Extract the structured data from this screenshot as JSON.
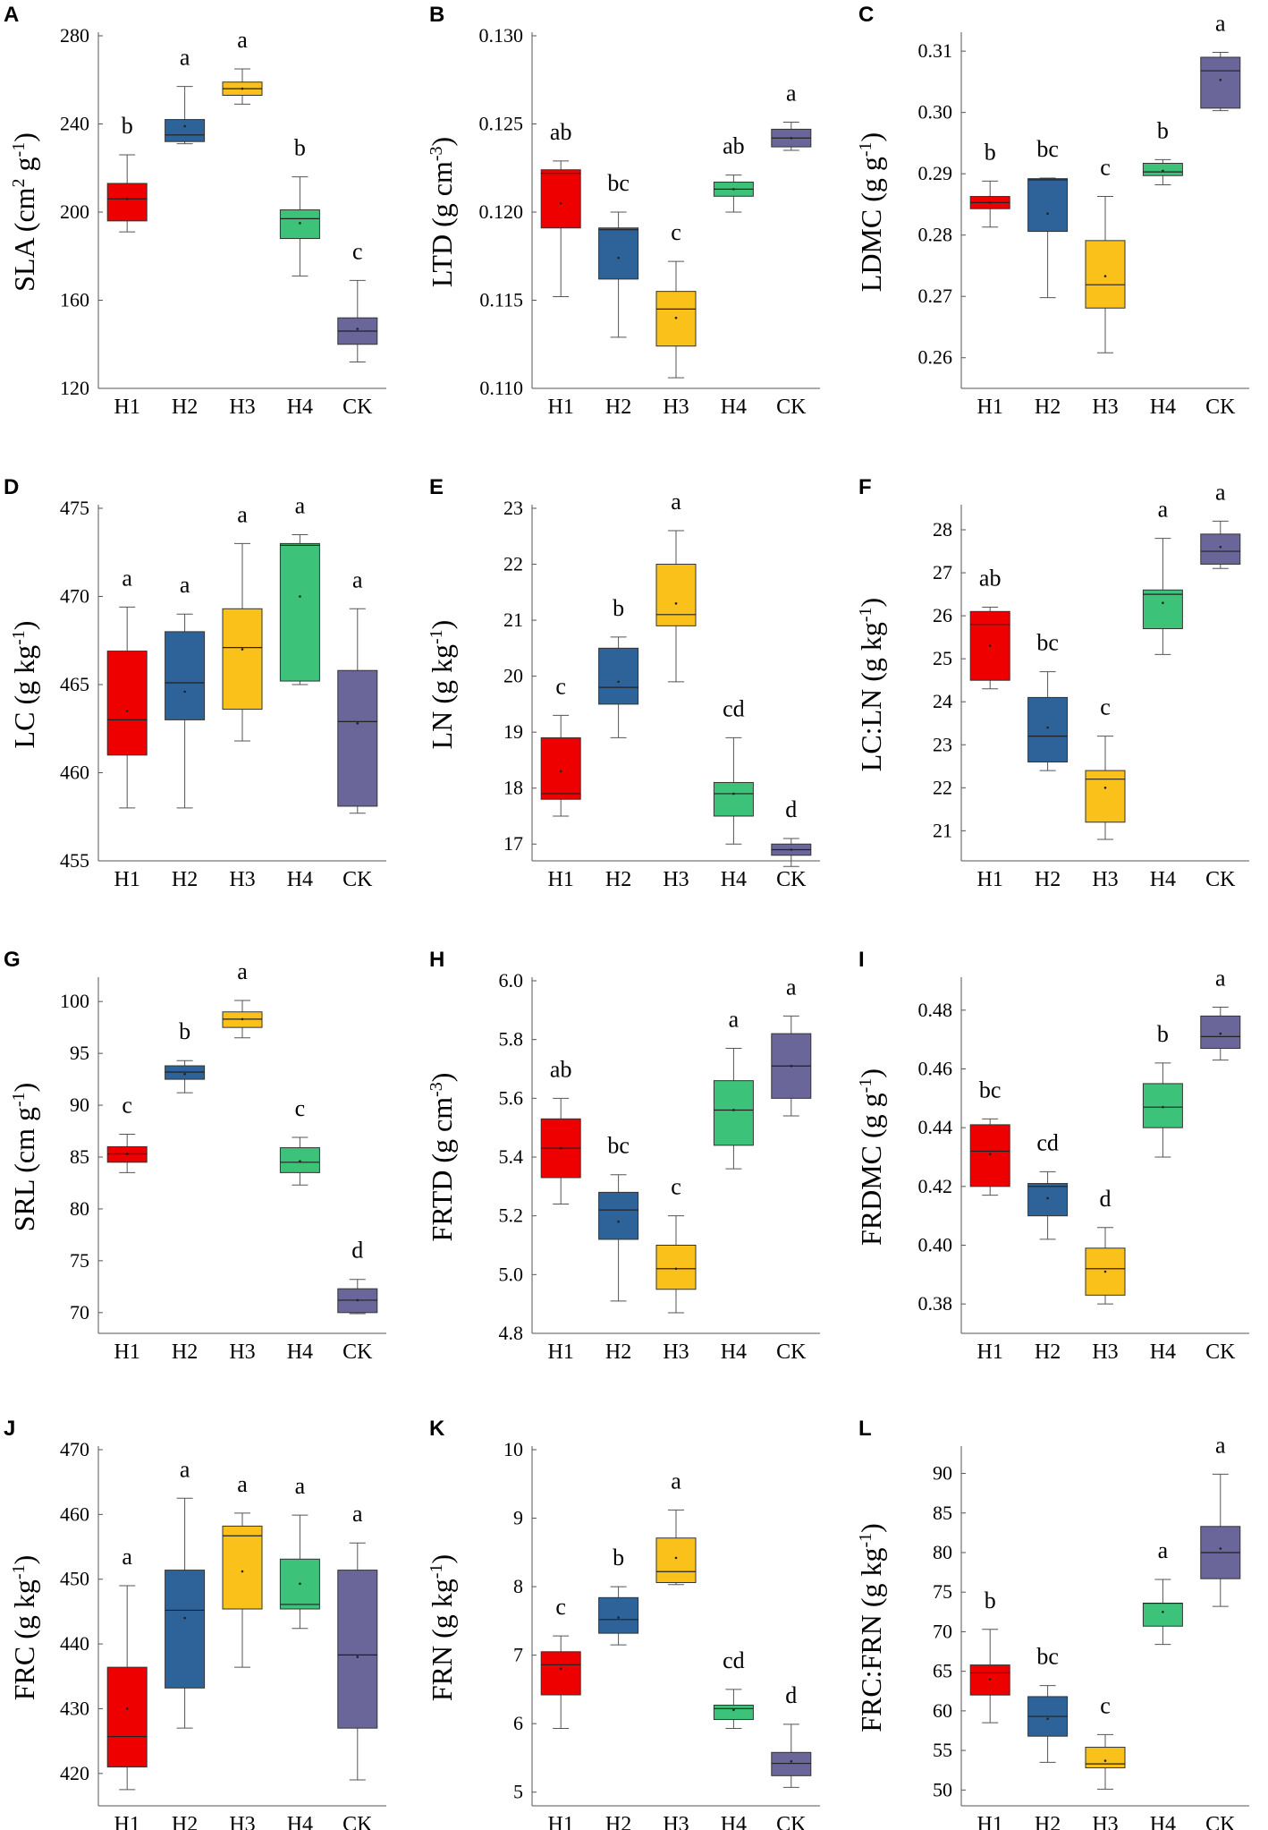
{
  "colors": {
    "H1": "#ee0000",
    "H2": "#2e6399",
    "H3": "#fbc11b",
    "H4": "#3dc279",
    "CK": "#6a6699"
  },
  "chart_data": [
    {
      "type": "box",
      "letter": "A",
      "ylabel": "SLA",
      "ylabel_unit": "(cm",
      "ylabel_sup": "2",
      "ylabel_mid": " g",
      "ylabel_sup2": "-1",
      "ylabel_end": ")",
      "ylim": [
        120,
        280
      ],
      "yticks": [
        120,
        160,
        200,
        240,
        280
      ],
      "tick_labels": [
        "120",
        "160",
        "200",
        "240",
        "280"
      ],
      "categories": [
        "H1",
        "H2",
        "H3",
        "H4",
        "CK"
      ],
      "boxes": [
        {
          "min": 191,
          "q1": 196,
          "median": 206,
          "q3": 213,
          "max": 226,
          "mean": 206
        },
        {
          "min": 231,
          "q1": 232,
          "median": 235,
          "q3": 242,
          "max": 257,
          "mean": 239
        },
        {
          "min": 249,
          "q1": 253,
          "median": 256,
          "q3": 259,
          "max": 265,
          "mean": 256
        },
        {
          "min": 171,
          "q1": 188,
          "median": 197,
          "q3": 201,
          "max": 216,
          "mean": 195
        },
        {
          "min": 132,
          "q1": 140,
          "median": 146,
          "q3": 152,
          "max": 169,
          "mean": 147
        }
      ],
      "letters": [
        "b",
        "a",
        "a",
        "b",
        "c"
      ]
    },
    {
      "type": "box",
      "letter": "B",
      "ylabel": "LTD",
      "ylabel_unit": "(g cm",
      "ylabel_sup": "-3",
      "ylabel_mid": "",
      "ylabel_sup2": "",
      "ylabel_end": ")",
      "ylim": [
        0.11,
        0.13
      ],
      "yticks": [
        0.11,
        0.115,
        0.12,
        0.125,
        0.13
      ],
      "tick_labels": [
        "0.110",
        "0.115",
        "0.120",
        "0.125",
        "0.130"
      ],
      "categories": [
        "H1",
        "H2",
        "H3",
        "H4",
        "CK"
      ],
      "boxes": [
        {
          "min": 0.1152,
          "q1": 0.1191,
          "median": 0.1222,
          "q3": 0.1224,
          "max": 0.1229,
          "mean": 0.1205
        },
        {
          "min": 0.1129,
          "q1": 0.1162,
          "median": 0.119,
          "q3": 0.1191,
          "max": 0.12,
          "mean": 0.1174
        },
        {
          "min": 0.1106,
          "q1": 0.1124,
          "median": 0.1145,
          "q3": 0.1155,
          "max": 0.1172,
          "mean": 0.114
        },
        {
          "min": 0.12,
          "q1": 0.1209,
          "median": 0.1213,
          "q3": 0.1217,
          "max": 0.1221,
          "mean": 0.1213
        },
        {
          "min": 0.1235,
          "q1": 0.1237,
          "median": 0.1242,
          "q3": 0.1247,
          "max": 0.1251,
          "mean": 0.1242
        }
      ],
      "letters": [
        "ab",
        "bc",
        "c",
        "ab",
        "a"
      ]
    },
    {
      "type": "box",
      "letter": "C",
      "ylabel": "LDMC",
      "ylabel_unit": "(g g",
      "ylabel_sup": "-1",
      "ylabel_mid": "",
      "ylabel_sup2": "",
      "ylabel_end": ")",
      "ylim": [
        0.255,
        0.3125
      ],
      "yticks": [
        0.26,
        0.27,
        0.28,
        0.29,
        0.3,
        0.31
      ],
      "tick_labels": [
        "0.26",
        "0.27",
        "0.28",
        "0.29",
        "0.30",
        "0.31"
      ],
      "categories": [
        "H1",
        "H2",
        "H3",
        "H4",
        "CK"
      ],
      "boxes": [
        {
          "min": 0.2813,
          "q1": 0.2843,
          "median": 0.2853,
          "q3": 0.2863,
          "max": 0.2888,
          "mean": 0.2853
        },
        {
          "min": 0.2698,
          "q1": 0.2806,
          "median": 0.289,
          "q3": 0.2892,
          "max": 0.2893,
          "mean": 0.2835
        },
        {
          "min": 0.2608,
          "q1": 0.2681,
          "median": 0.2719,
          "q3": 0.2791,
          "max": 0.2863,
          "mean": 0.2733
        },
        {
          "min": 0.2882,
          "q1": 0.2897,
          "median": 0.2903,
          "q3": 0.2917,
          "max": 0.2923,
          "mean": 0.2905
        },
        {
          "min": 0.3003,
          "q1": 0.3007,
          "median": 0.3068,
          "q3": 0.309,
          "max": 0.3098,
          "mean": 0.3053
        }
      ],
      "letters": [
        "b",
        "bc",
        "c",
        "b",
        "a"
      ]
    },
    {
      "type": "box",
      "letter": "D",
      "ylabel": "LC",
      "ylabel_unit": "(g kg",
      "ylabel_sup": "-1",
      "ylabel_mid": "",
      "ylabel_sup2": "",
      "ylabel_end": ")",
      "ylim": [
        455,
        475
      ],
      "yticks": [
        455,
        460,
        465,
        470,
        475
      ],
      "tick_labels": [
        "455",
        "460",
        "465",
        "470",
        "475"
      ],
      "categories": [
        "H1",
        "H2",
        "H3",
        "H4",
        "CK"
      ],
      "boxes": [
        {
          "min": 458.0,
          "q1": 461.0,
          "median": 463.0,
          "q3": 466.9,
          "max": 469.4,
          "mean": 463.5
        },
        {
          "min": 458.0,
          "q1": 463.0,
          "median": 465.1,
          "q3": 468.0,
          "max": 469.0,
          "mean": 464.6
        },
        {
          "min": 461.8,
          "q1": 463.6,
          "median": 467.1,
          "q3": 469.3,
          "max": 473.0,
          "mean": 467.0
        },
        {
          "min": 465.0,
          "q1": 465.2,
          "median": 472.9,
          "q3": 473.0,
          "max": 473.5,
          "mean": 470.0
        },
        {
          "min": 457.7,
          "q1": 458.1,
          "median": 462.9,
          "q3": 465.8,
          "max": 469.3,
          "mean": 462.8
        }
      ],
      "letters": [
        "a",
        "a",
        "a",
        "a",
        "a"
      ]
    },
    {
      "type": "box",
      "letter": "E",
      "ylabel": "LN",
      "ylabel_unit": "(g kg",
      "ylabel_sup": "-1",
      "ylabel_mid": "",
      "ylabel_sup2": "",
      "ylabel_end": ")",
      "ylim": [
        16.7,
        23.0
      ],
      "yticks": [
        17,
        18,
        19,
        20,
        21,
        22,
        23
      ],
      "tick_labels": [
        "17",
        "18",
        "19",
        "20",
        "21",
        "22",
        "23"
      ],
      "categories": [
        "H1",
        "H2",
        "H3",
        "H4",
        "CK"
      ],
      "boxes": [
        {
          "min": 17.5,
          "q1": 17.8,
          "median": 17.9,
          "q3": 18.9,
          "max": 19.3,
          "mean": 18.3
        },
        {
          "min": 18.9,
          "q1": 19.5,
          "median": 19.8,
          "q3": 20.5,
          "max": 20.7,
          "mean": 19.9
        },
        {
          "min": 19.9,
          "q1": 20.9,
          "median": 21.1,
          "q3": 22.0,
          "max": 22.6,
          "mean": 21.3
        },
        {
          "min": 17.0,
          "q1": 17.5,
          "median": 17.9,
          "q3": 18.1,
          "max": 18.9,
          "mean": 17.9
        },
        {
          "min": 16.6,
          "q1": 16.8,
          "median": 16.9,
          "q3": 17.0,
          "max": 17.1,
          "mean": 16.9
        }
      ],
      "letters": [
        "c",
        "b",
        "a",
        "cd",
        "d"
      ]
    },
    {
      "type": "box",
      "letter": "F",
      "ylabel": "LC:LN",
      "ylabel_unit": "(g kg",
      "ylabel_sup": "-1",
      "ylabel_mid": "",
      "ylabel_sup2": "",
      "ylabel_end": ")",
      "ylim": [
        20.3,
        28.5
      ],
      "yticks": [
        21,
        22,
        23,
        24,
        25,
        26,
        27,
        28
      ],
      "tick_labels": [
        "21",
        "22",
        "23",
        "24",
        "25",
        "26",
        "27",
        "28"
      ],
      "categories": [
        "H1",
        "H2",
        "H3",
        "H4",
        "CK"
      ],
      "boxes": [
        {
          "min": 24.3,
          "q1": 24.5,
          "median": 25.8,
          "q3": 26.1,
          "max": 26.2,
          "mean": 25.3
        },
        {
          "min": 22.4,
          "q1": 22.6,
          "median": 23.2,
          "q3": 24.1,
          "max": 24.7,
          "mean": 23.4
        },
        {
          "min": 20.8,
          "q1": 21.2,
          "median": 22.2,
          "q3": 22.4,
          "max": 23.2,
          "mean": 22.0
        },
        {
          "min": 25.1,
          "q1": 25.7,
          "median": 26.5,
          "q3": 26.6,
          "max": 27.8,
          "mean": 26.3
        },
        {
          "min": 27.1,
          "q1": 27.2,
          "median": 27.5,
          "q3": 27.9,
          "max": 28.2,
          "mean": 27.6
        }
      ],
      "letters": [
        "ab",
        "bc",
        "c",
        "a",
        "a"
      ]
    },
    {
      "type": "box",
      "letter": "G",
      "ylabel": "SRL",
      "ylabel_unit": "(cm g",
      "ylabel_sup": "-1",
      "ylabel_mid": "",
      "ylabel_sup2": "",
      "ylabel_end": ")",
      "ylim": [
        68,
        102
      ],
      "yticks": [
        70,
        75,
        80,
        85,
        90,
        95,
        100
      ],
      "tick_labels": [
        "70",
        "75",
        "80",
        "85",
        "90",
        "95",
        "100"
      ],
      "categories": [
        "H1",
        "H2",
        "H3",
        "H4",
        "CK"
      ],
      "boxes": [
        {
          "min": 83.5,
          "q1": 84.5,
          "median": 85.3,
          "q3": 86.0,
          "max": 87.2,
          "mean": 85.3
        },
        {
          "min": 91.2,
          "q1": 92.5,
          "median": 93.2,
          "q3": 93.8,
          "max": 94.3,
          "mean": 93.0
        },
        {
          "min": 96.5,
          "q1": 97.5,
          "median": 98.3,
          "q3": 99.0,
          "max": 100.1,
          "mean": 98.3
        },
        {
          "min": 82.3,
          "q1": 83.5,
          "median": 84.5,
          "q3": 85.9,
          "max": 86.9,
          "mean": 84.6
        },
        {
          "min": 69.9,
          "q1": 70.0,
          "median": 71.2,
          "q3": 72.3,
          "max": 73.2,
          "mean": 71.2
        }
      ],
      "letters": [
        "c",
        "b",
        "a",
        "c",
        "d"
      ]
    },
    {
      "type": "box",
      "letter": "H",
      "ylabel": "FRTD",
      "ylabel_unit": "(g cm",
      "ylabel_sup": "-3",
      "ylabel_mid": "",
      "ylabel_sup2": "",
      "ylabel_end": ")",
      "ylim": [
        4.8,
        6.0
      ],
      "yticks": [
        4.8,
        5.0,
        5.2,
        5.4,
        5.6,
        5.8,
        6.0
      ],
      "tick_labels": [
        "4.8",
        "5.0",
        "5.2",
        "5.4",
        "5.6",
        "5.8",
        "6.0"
      ],
      "categories": [
        "H1",
        "H2",
        "H3",
        "H4",
        "CK"
      ],
      "boxes": [
        {
          "min": 5.24,
          "q1": 5.33,
          "median": 5.43,
          "q3": 5.53,
          "max": 5.6,
          "mean": 5.43
        },
        {
          "min": 4.91,
          "q1": 5.12,
          "median": 5.22,
          "q3": 5.28,
          "max": 5.34,
          "mean": 5.18
        },
        {
          "min": 4.87,
          "q1": 4.95,
          "median": 5.02,
          "q3": 5.1,
          "max": 5.2,
          "mean": 5.02
        },
        {
          "min": 5.36,
          "q1": 5.44,
          "median": 5.56,
          "q3": 5.66,
          "max": 5.77,
          "mean": 5.56
        },
        {
          "min": 5.54,
          "q1": 5.6,
          "median": 5.71,
          "q3": 5.82,
          "max": 5.88,
          "mean": 5.71
        }
      ],
      "letters": [
        "ab",
        "bc",
        "c",
        "a",
        "a"
      ]
    },
    {
      "type": "box",
      "letter": "I",
      "ylabel": "FRDMC",
      "ylabel_unit": "(g g",
      "ylabel_sup": "-1",
      "ylabel_mid": "",
      "ylabel_sup2": "",
      "ylabel_end": ")",
      "ylim": [
        0.37,
        0.49
      ],
      "yticks": [
        0.38,
        0.4,
        0.42,
        0.44,
        0.46,
        0.48
      ],
      "tick_labels": [
        "0.38",
        "0.40",
        "0.42",
        "0.44",
        "0.46",
        "0.48"
      ],
      "categories": [
        "H1",
        "H2",
        "H3",
        "H4",
        "CK"
      ],
      "boxes": [
        {
          "min": 0.417,
          "q1": 0.42,
          "median": 0.432,
          "q3": 0.441,
          "max": 0.443,
          "mean": 0.431
        },
        {
          "min": 0.402,
          "q1": 0.41,
          "median": 0.42,
          "q3": 0.421,
          "max": 0.425,
          "mean": 0.416
        },
        {
          "min": 0.38,
          "q1": 0.383,
          "median": 0.392,
          "q3": 0.399,
          "max": 0.406,
          "mean": 0.391
        },
        {
          "min": 0.43,
          "q1": 0.44,
          "median": 0.447,
          "q3": 0.455,
          "max": 0.462,
          "mean": 0.447
        },
        {
          "min": 0.463,
          "q1": 0.467,
          "median": 0.471,
          "q3": 0.478,
          "max": 0.481,
          "mean": 0.472
        }
      ],
      "letters": [
        "bc",
        "cd",
        "d",
        "b",
        "a"
      ]
    },
    {
      "type": "box",
      "letter": "J",
      "ylabel": "FRC",
      "ylabel_unit": "(g kg",
      "ylabel_sup": "-1",
      "ylabel_mid": "",
      "ylabel_sup2": "",
      "ylabel_end": ")",
      "ylim": [
        415,
        470
      ],
      "yticks": [
        420,
        430,
        440,
        450,
        460,
        470
      ],
      "tick_labels": [
        "420",
        "430",
        "440",
        "450",
        "460",
        "470"
      ],
      "categories": [
        "H1",
        "H2",
        "H3",
        "H4",
        "CK"
      ],
      "boxes": [
        {
          "min": 417.5,
          "q1": 421.0,
          "median": 425.7,
          "q3": 436.4,
          "max": 449.0,
          "mean": 430.0
        },
        {
          "min": 427.0,
          "q1": 433.2,
          "median": 445.2,
          "q3": 451.4,
          "max": 462.5,
          "mean": 444.0
        },
        {
          "min": 436.4,
          "q1": 445.4,
          "median": 456.7,
          "q3": 458.2,
          "max": 460.2,
          "mean": 451.2
        },
        {
          "min": 442.4,
          "q1": 445.4,
          "median": 446.1,
          "q3": 453.1,
          "max": 459.9,
          "mean": 449.3
        },
        {
          "min": 419.0,
          "q1": 427.0,
          "median": 438.3,
          "q3": 451.4,
          "max": 455.6,
          "mean": 438.0
        }
      ],
      "letters": [
        "a",
        "a",
        "a",
        "a",
        "a"
      ]
    },
    {
      "type": "box",
      "letter": "K",
      "ylabel": "FRN",
      "ylabel_unit": "(g kg",
      "ylabel_sup": "-1",
      "ylabel_mid": "",
      "ylabel_sup2": "",
      "ylabel_end": ")",
      "ylim": [
        4.8,
        10.0
      ],
      "yticks": [
        5,
        6,
        7,
        8,
        9,
        10
      ],
      "tick_labels": [
        "5",
        "6",
        "7",
        "8",
        "9",
        "10"
      ],
      "categories": [
        "H1",
        "H2",
        "H3",
        "H4",
        "CK"
      ],
      "boxes": [
        {
          "min": 5.93,
          "q1": 6.42,
          "median": 6.86,
          "q3": 7.05,
          "max": 7.28,
          "mean": 6.8
        },
        {
          "min": 7.15,
          "q1": 7.32,
          "median": 7.52,
          "q3": 7.84,
          "max": 8.0,
          "mean": 7.55
        },
        {
          "min": 8.03,
          "q1": 8.06,
          "median": 8.22,
          "q3": 8.71,
          "max": 9.12,
          "mean": 8.42
        },
        {
          "min": 5.93,
          "q1": 6.06,
          "median": 6.22,
          "q3": 6.27,
          "max": 6.5,
          "mean": 6.2
        },
        {
          "min": 5.07,
          "q1": 5.24,
          "median": 5.42,
          "q3": 5.58,
          "max": 5.99,
          "mean": 5.45
        }
      ],
      "letters": [
        "c",
        "b",
        "a",
        "cd",
        "d"
      ]
    },
    {
      "type": "box",
      "letter": "L",
      "ylabel": "FRC:FRN",
      "ylabel_unit": "(g kg",
      "ylabel_sup": "-1",
      "ylabel_mid": "",
      "ylabel_sup2": "",
      "ylabel_end": ")",
      "ylim": [
        48,
        93
      ],
      "yticks": [
        50,
        55,
        60,
        65,
        70,
        75,
        80,
        85,
        90
      ],
      "tick_labels": [
        "50",
        "55",
        "60",
        "65",
        "70",
        "75",
        "80",
        "85",
        "90"
      ],
      "categories": [
        "H1",
        "H2",
        "H3",
        "H4",
        "CK"
      ],
      "boxes": [
        {
          "min": 58.5,
          "q1": 62.0,
          "median": 64.8,
          "q3": 65.8,
          "max": 70.3,
          "mean": 64.0
        },
        {
          "min": 53.5,
          "q1": 56.8,
          "median": 59.3,
          "q3": 61.8,
          "max": 63.2,
          "mean": 59.0
        },
        {
          "min": 50.1,
          "q1": 52.8,
          "median": 53.3,
          "q3": 55.4,
          "max": 57.0,
          "mean": 53.7
        },
        {
          "min": 68.4,
          "q1": 70.7,
          "median": 73.6,
          "q3": 73.6,
          "max": 76.6,
          "mean": 72.5
        },
        {
          "min": 73.2,
          "q1": 76.7,
          "median": 80.0,
          "q3": 83.3,
          "max": 89.9,
          "mean": 80.5
        }
      ],
      "letters": [
        "b",
        "bc",
        "c",
        "a",
        "a"
      ]
    }
  ]
}
